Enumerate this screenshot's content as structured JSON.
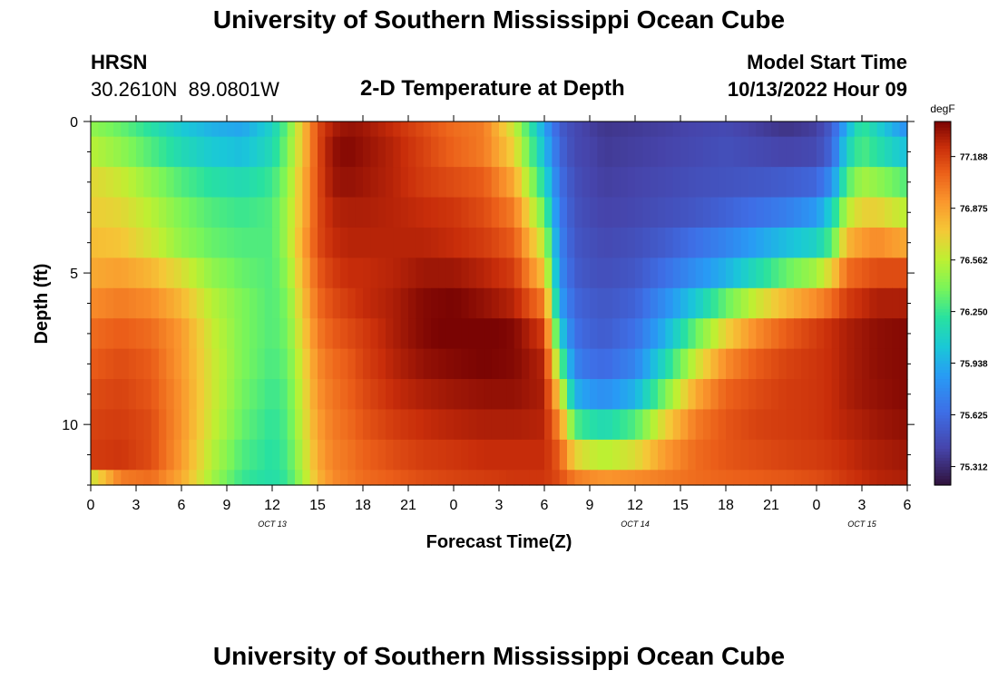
{
  "title": "University of Southern Mississippi Ocean Cube",
  "title_repeat": "University of Southern Mississippi Ocean Cube",
  "station": {
    "name": "HRSN",
    "coords": "30.2610N  89.0801W"
  },
  "model": {
    "label": "Model Start Time",
    "start": "10/13/2022 Hour 09"
  },
  "chart_data": {
    "type": "heatmap",
    "title": "2-D Temperature at Depth",
    "xlabel": "Forecast Time(Z)",
    "ylabel": "Depth (ft)",
    "x_range_hours": [
      0,
      54
    ],
    "y_range_ft": [
      0,
      12
    ],
    "x_ticks": [
      "0",
      "3",
      "6",
      "9",
      "12",
      "15",
      "18",
      "21",
      "0",
      "3",
      "6",
      "9",
      "12",
      "15",
      "18",
      "21",
      "0",
      "3",
      "6"
    ],
    "y_ticks": [
      {
        "v": 0,
        "label": "0"
      },
      {
        "v": 5,
        "label": "5"
      },
      {
        "v": 10,
        "label": "10"
      }
    ],
    "date_labels": [
      {
        "hour": 12,
        "label": "OCT 13"
      },
      {
        "hour": 36,
        "label": "OCT 14"
      },
      {
        "hour": 51,
        "label": "OCT 15"
      }
    ],
    "colorbar": {
      "unit": "degF",
      "min": 75.2,
      "max": 77.4,
      "ticks": [
        "75.312",
        "75.625",
        "75.938",
        "76.250",
        "76.562",
        "76.875",
        "77.188"
      ]
    },
    "depth_levels_ft": [
      0,
      1,
      2,
      3,
      4,
      5,
      6,
      7,
      8,
      9,
      10,
      11,
      12
    ],
    "time_knots_hours": [
      0,
      2,
      4,
      6,
      8,
      10,
      12,
      13,
      14,
      15,
      16,
      17,
      18,
      20,
      22,
      24,
      26,
      28,
      30,
      31,
      32,
      33,
      34,
      36,
      38,
      40,
      42,
      44,
      46,
      48,
      49,
      50,
      51,
      52,
      54
    ],
    "values": [
      [
        76.45,
        76.35,
        76.2,
        76.05,
        75.95,
        75.9,
        76.1,
        76.35,
        76.75,
        77.15,
        77.3,
        77.35,
        77.33,
        77.25,
        77.15,
        77.05,
        77.0,
        76.6,
        75.9,
        75.55,
        75.45,
        75.4,
        75.36,
        75.38,
        75.4,
        75.43,
        75.45,
        75.4,
        75.35,
        75.4,
        75.55,
        75.95,
        76.25,
        76.1,
        75.8
      ],
      [
        76.55,
        76.45,
        76.3,
        76.15,
        76.05,
        76.0,
        76.15,
        76.4,
        76.75,
        77.15,
        77.35,
        77.38,
        77.35,
        77.28,
        77.18,
        77.08,
        77.0,
        76.7,
        76.0,
        75.6,
        75.45,
        75.42,
        75.38,
        75.4,
        75.42,
        75.45,
        75.48,
        75.45,
        75.42,
        75.45,
        75.6,
        76.1,
        76.3,
        76.2,
        76.0
      ],
      [
        76.68,
        76.6,
        76.45,
        76.3,
        76.2,
        76.15,
        76.25,
        76.45,
        76.8,
        77.15,
        77.33,
        77.35,
        77.33,
        77.28,
        77.2,
        77.15,
        77.1,
        76.85,
        76.15,
        75.65,
        75.48,
        75.43,
        75.4,
        75.42,
        75.45,
        75.48,
        75.5,
        75.52,
        75.55,
        75.6,
        75.8,
        76.3,
        76.5,
        76.45,
        76.3
      ],
      [
        76.72,
        76.68,
        76.55,
        76.4,
        76.3,
        76.25,
        76.3,
        76.5,
        76.8,
        77.15,
        77.28,
        77.3,
        77.3,
        77.28,
        77.25,
        77.22,
        77.15,
        77.0,
        76.35,
        75.7,
        75.5,
        75.45,
        75.42,
        75.44,
        75.48,
        75.52,
        75.58,
        75.65,
        75.72,
        75.85,
        76.1,
        76.55,
        76.7,
        76.7,
        76.55
      ],
      [
        76.78,
        76.75,
        76.62,
        76.45,
        76.35,
        76.3,
        76.3,
        76.5,
        76.85,
        77.15,
        77.25,
        77.28,
        77.28,
        77.28,
        77.28,
        77.25,
        77.2,
        77.1,
        76.55,
        75.75,
        75.52,
        75.48,
        75.45,
        75.48,
        75.55,
        75.65,
        75.75,
        75.88,
        76.0,
        76.1,
        76.3,
        76.8,
        76.9,
        76.95,
        76.85
      ],
      [
        76.85,
        76.88,
        76.8,
        76.65,
        76.45,
        76.35,
        76.3,
        76.45,
        76.8,
        77.1,
        77.2,
        77.25,
        77.25,
        77.28,
        77.33,
        77.33,
        77.28,
        77.2,
        76.75,
        75.8,
        75.55,
        75.5,
        75.48,
        75.52,
        75.65,
        75.8,
        75.95,
        76.15,
        76.35,
        76.5,
        76.7,
        77.05,
        77.1,
        77.15,
        77.15
      ],
      [
        76.95,
        77.0,
        76.95,
        76.8,
        76.55,
        76.4,
        76.3,
        76.4,
        76.75,
        77.05,
        77.15,
        77.2,
        77.25,
        77.3,
        77.38,
        77.4,
        77.35,
        77.28,
        77.0,
        75.9,
        75.6,
        75.55,
        75.52,
        75.58,
        75.8,
        76.05,
        76.35,
        76.6,
        76.8,
        76.95,
        77.05,
        77.2,
        77.25,
        77.3,
        77.3
      ],
      [
        77.05,
        77.1,
        77.05,
        76.9,
        76.6,
        76.4,
        76.3,
        76.38,
        76.7,
        77.0,
        77.1,
        77.15,
        77.2,
        77.3,
        77.38,
        77.42,
        77.42,
        77.38,
        77.2,
        76.1,
        75.65,
        75.58,
        75.55,
        75.65,
        75.95,
        76.35,
        76.7,
        76.95,
        77.1,
        77.2,
        77.25,
        77.3,
        77.33,
        77.36,
        77.38
      ],
      [
        77.1,
        77.15,
        77.1,
        76.9,
        76.62,
        76.4,
        76.28,
        76.35,
        76.65,
        76.95,
        77.05,
        77.1,
        77.18,
        77.28,
        77.35,
        77.38,
        77.4,
        77.38,
        77.28,
        76.4,
        75.75,
        75.65,
        75.62,
        75.75,
        76.15,
        76.6,
        76.95,
        77.1,
        77.18,
        77.22,
        77.25,
        77.3,
        77.33,
        77.36,
        77.38
      ],
      [
        77.15,
        77.18,
        77.12,
        76.92,
        76.62,
        76.38,
        76.25,
        76.32,
        76.62,
        76.92,
        77.02,
        77.08,
        77.15,
        77.25,
        77.3,
        77.33,
        77.35,
        77.35,
        77.3,
        76.7,
        75.95,
        75.85,
        75.8,
        75.95,
        76.4,
        76.85,
        77.08,
        77.15,
        77.2,
        77.22,
        77.25,
        77.3,
        77.33,
        77.35,
        77.38
      ],
      [
        77.18,
        77.2,
        77.15,
        76.92,
        76.6,
        76.35,
        76.22,
        76.3,
        76.6,
        76.88,
        77.0,
        77.05,
        77.12,
        77.2,
        77.25,
        77.28,
        77.3,
        77.3,
        77.28,
        76.95,
        76.3,
        76.2,
        76.15,
        76.3,
        76.7,
        77.0,
        77.12,
        77.18,
        77.2,
        77.22,
        77.25,
        77.28,
        77.3,
        77.33,
        77.36
      ],
      [
        77.2,
        77.22,
        77.15,
        76.9,
        76.55,
        76.3,
        76.2,
        76.28,
        76.55,
        76.85,
        76.98,
        77.02,
        77.08,
        77.15,
        77.2,
        77.22,
        77.25,
        77.25,
        77.25,
        77.1,
        76.7,
        76.6,
        76.55,
        76.65,
        76.9,
        77.05,
        77.12,
        77.15,
        77.18,
        77.2,
        77.22,
        77.25,
        77.28,
        77.3,
        77.33
      ],
      [
        76.6,
        77.0,
        77.05,
        76.85,
        76.5,
        76.25,
        76.18,
        76.25,
        76.5,
        76.8,
        76.95,
        77.0,
        77.05,
        77.1,
        77.15,
        77.18,
        77.2,
        77.22,
        77.22,
        77.15,
        77.0,
        76.95,
        76.92,
        76.95,
        77.0,
        77.05,
        77.08,
        77.1,
        77.12,
        77.15,
        77.18,
        77.22,
        77.25,
        77.28,
        77.3
      ]
    ]
  }
}
